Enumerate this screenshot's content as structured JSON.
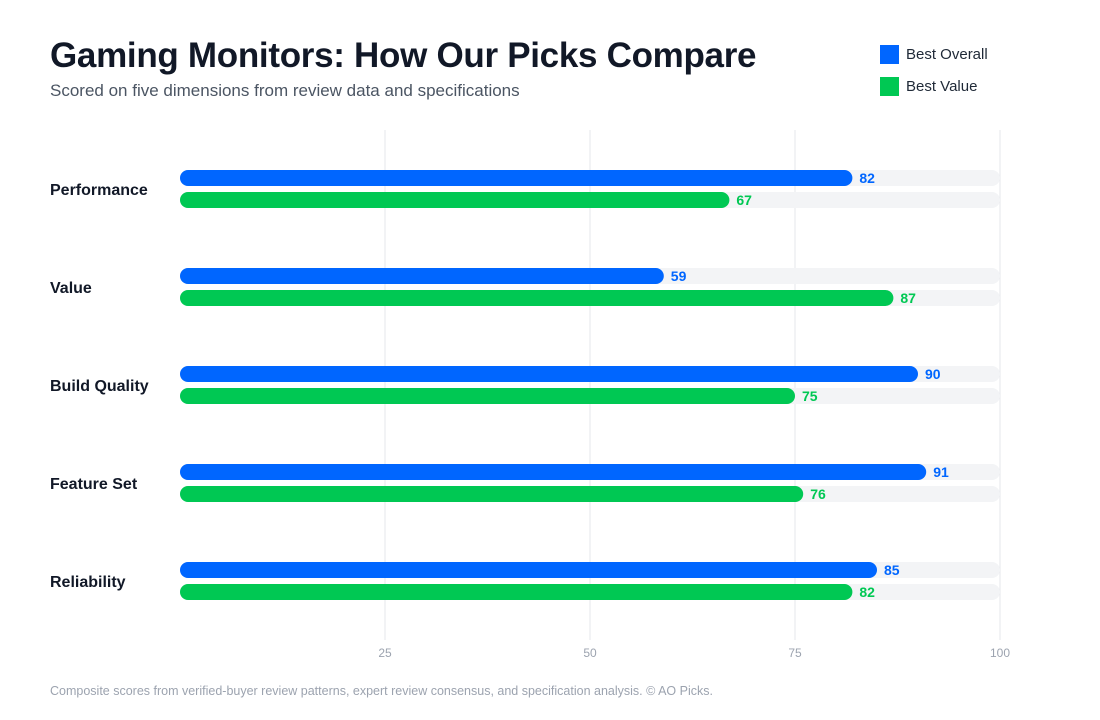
{
  "title": "Gaming Monitors: How Our Picks Compare",
  "subtitle": "Scored on five dimensions from review data and specifications",
  "legend": [
    {
      "label": "Best Overall",
      "color": "#0066ff"
    },
    {
      "label": "Best Value",
      "color": "#00c853"
    }
  ],
  "footnote": "Composite scores from verified-buyer review patterns, expert review consensus, and specification analysis. © AO Picks.",
  "colors": {
    "track": "#f3f4f6",
    "grid": "#e5e7eb",
    "tick_text": "#9ca3af",
    "category_text": "#111827"
  },
  "chart_data": {
    "type": "bar",
    "orientation": "horizontal",
    "categories": [
      "Performance",
      "Value",
      "Build Quality",
      "Feature Set",
      "Reliability"
    ],
    "series": [
      {
        "name": "Best Overall",
        "color": "#0066ff",
        "values": [
          82,
          59,
          90,
          91,
          85
        ]
      },
      {
        "name": "Best Value",
        "color": "#00c853",
        "values": [
          67,
          87,
          75,
          76,
          82
        ]
      }
    ],
    "xlim": [
      0,
      100
    ],
    "xticks": [
      25,
      50,
      75,
      100
    ],
    "grid": true,
    "legend_position": "top-right"
  }
}
